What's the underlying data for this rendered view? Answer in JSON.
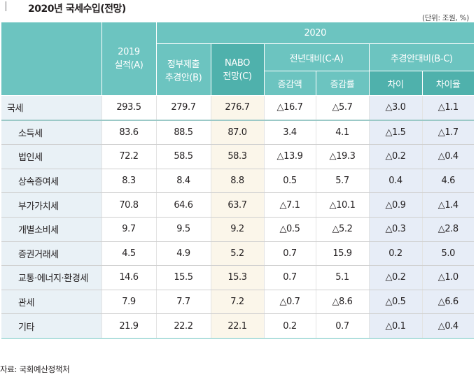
{
  "title": "2020년 국세수입(전망)",
  "unit": "(단위: 조원, %)",
  "header": {
    "year_2020": "2020",
    "col_2019": "2019\n실적(A)",
    "col_gov": "정부제출\n추경안(B)",
    "col_nabo": "NABO\n전망(C)",
    "group_yoy": "전년대비(C-A)",
    "group_budget": "추경안대비(B-C)",
    "yoy_amount": "증감액",
    "yoy_rate": "증감률",
    "budget_diff": "차이",
    "budget_rate": "차이율"
  },
  "rows": [
    {
      "label": "국세",
      "a": "293.5",
      "b": "279.7",
      "c": "276.7",
      "yoy_amt": "△16.7",
      "yoy_rate": "△5.7",
      "diff": "△3.0",
      "diff_rate": "△1.1"
    },
    {
      "label": "소득세",
      "a": "83.6",
      "b": "88.5",
      "c": "87.0",
      "yoy_amt": "3.4",
      "yoy_rate": "4.1",
      "diff": "△1.5",
      "diff_rate": "△1.7"
    },
    {
      "label": "법인세",
      "a": "72.2",
      "b": "58.5",
      "c": "58.3",
      "yoy_amt": "△13.9",
      "yoy_rate": "△19.3",
      "diff": "△0.2",
      "diff_rate": "△0.4"
    },
    {
      "label": "상속증여세",
      "a": "8.3",
      "b": "8.4",
      "c": "8.8",
      "yoy_amt": "0.5",
      "yoy_rate": "5.7",
      "diff": "0.4",
      "diff_rate": "4.6"
    },
    {
      "label": "부가가치세",
      "a": "70.8",
      "b": "64.6",
      "c": "63.7",
      "yoy_amt": "△7.1",
      "yoy_rate": "△10.1",
      "diff": "△0.9",
      "diff_rate": "△1.4"
    },
    {
      "label": "개별소비세",
      "a": "9.7",
      "b": "9.5",
      "c": "9.2",
      "yoy_amt": "△0.5",
      "yoy_rate": "△5.2",
      "diff": "△0.3",
      "diff_rate": "△2.8"
    },
    {
      "label": "증권거래세",
      "a": "4.5",
      "b": "4.9",
      "c": "5.2",
      "yoy_amt": "0.7",
      "yoy_rate": "15.9",
      "diff": "0.2",
      "diff_rate": "5.0"
    },
    {
      "label": "교통·에너지·환경세",
      "a": "14.6",
      "b": "15.5",
      "c": "15.3",
      "yoy_amt": "0.7",
      "yoy_rate": "5.1",
      "diff": "△0.2",
      "diff_rate": "△1.0"
    },
    {
      "label": "관세",
      "a": "7.9",
      "b": "7.7",
      "c": "7.2",
      "yoy_amt": "△0.7",
      "yoy_rate": "△8.6",
      "diff": "△0.5",
      "diff_rate": "△6.6"
    },
    {
      "label": "기타",
      "a": "21.9",
      "b": "22.2",
      "c": "22.1",
      "yoy_amt": "0.2",
      "yoy_rate": "0.7",
      "diff": "△0.1",
      "diff_rate": "△0.4"
    }
  ],
  "source": "자료: 국회예산정책처",
  "colors": {
    "header": "#6cc4c0",
    "header_highlight": "#4fb1ac",
    "label_bg": "#e9f1f6",
    "nabo_bg": "#fbf6ea",
    "budget_bg": "#e7edf7"
  }
}
